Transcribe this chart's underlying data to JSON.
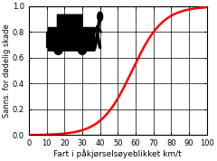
{
  "title": "",
  "xlabel": "Fart i påkjørselsøyeblikket km/t",
  "ylabel": "Sanns. for dødelig skade",
  "xlim": [
    0,
    100
  ],
  "ylim": [
    0,
    1
  ],
  "xticks": [
    0,
    10,
    20,
    30,
    40,
    50,
    60,
    70,
    80,
    90,
    100
  ],
  "yticks": [
    0,
    0.2,
    0.4,
    0.6,
    0.8,
    1
  ],
  "curve_color": "#ff0000",
  "curve_linewidth": 1.8,
  "sigmoid_midpoint": 58,
  "sigmoid_steepness": 0.115,
  "background_color": "#ffffff",
  "grid_color": "#000000",
  "xlabel_fontsize": 6.5,
  "ylabel_fontsize": 6.0,
  "tick_fontsize": 6.0,
  "figsize": [
    2.4,
    1.78
  ],
  "dpi": 100
}
